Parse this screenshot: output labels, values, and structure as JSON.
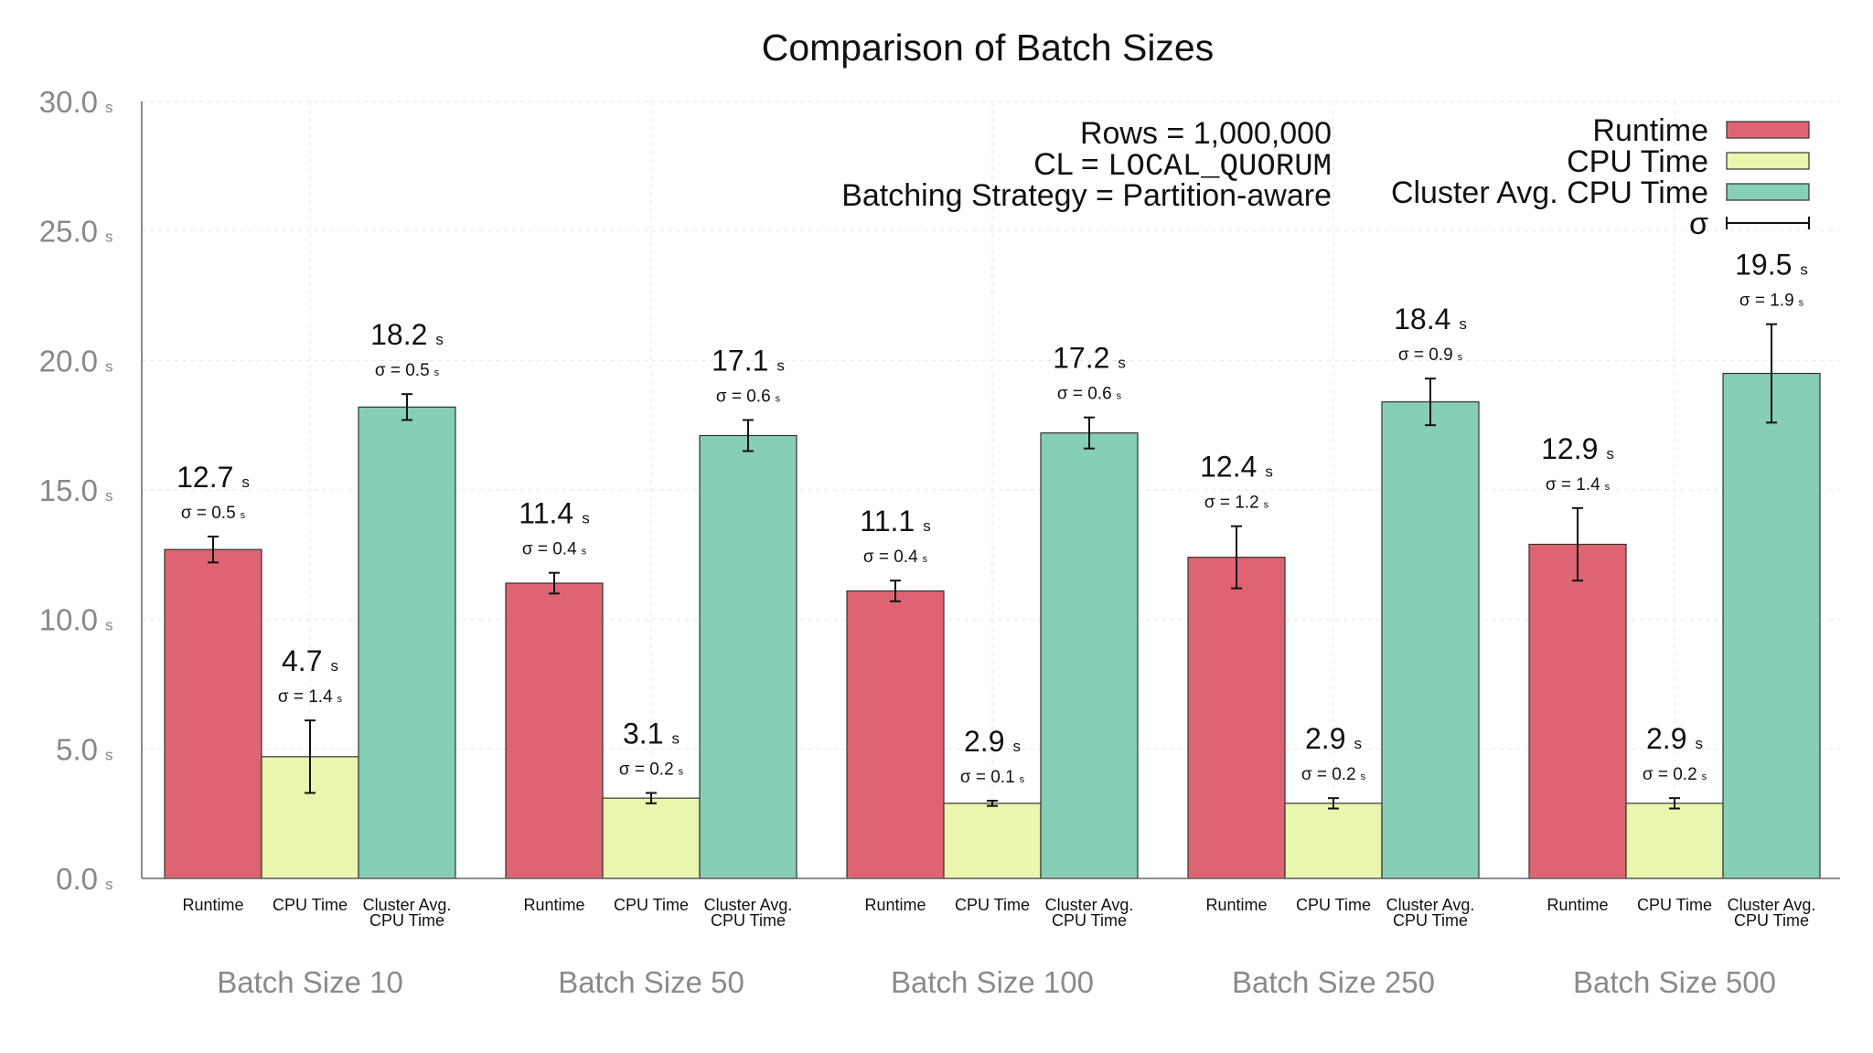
{
  "chart_data": {
    "type": "bar",
    "title": "Comparison of Batch Sizes",
    "ylabel": "",
    "xlabel": "",
    "ylim": [
      0,
      30
    ],
    "yticks": [
      {
        "value": 0,
        "label": "0.0"
      },
      {
        "value": 5,
        "label": "5.0"
      },
      {
        "value": 10,
        "label": "10.0"
      },
      {
        "value": 15,
        "label": "15.0"
      },
      {
        "value": 20,
        "label": "20.0"
      },
      {
        "value": 25,
        "label": "25.0"
      },
      {
        "value": 30,
        "label": "30.0"
      }
    ],
    "unit": "s",
    "grid": true,
    "categories": [
      "Batch Size 10",
      "Batch Size 50",
      "Batch Size 100",
      "Batch Size 250",
      "Batch Size 500"
    ],
    "series": [
      {
        "name": "Runtime",
        "bar_label": "Runtime",
        "color": "#de6471",
        "values": [
          12.7,
          11.4,
          11.1,
          12.4,
          12.9
        ],
        "sigma": [
          0.5,
          0.4,
          0.4,
          1.2,
          1.4
        ],
        "labels": [
          "12.7",
          "11.4",
          "11.1",
          "12.4",
          "12.9"
        ],
        "sigma_labels": [
          "σ = 0.5",
          "σ = 0.4",
          "σ = 0.4",
          "σ = 1.2",
          "σ = 1.4"
        ]
      },
      {
        "name": "CPU Time",
        "bar_label": "CPU Time",
        "color": "#eaf5ad",
        "values": [
          4.7,
          3.1,
          2.9,
          2.9,
          2.9
        ],
        "sigma": [
          1.4,
          0.2,
          0.1,
          0.2,
          0.2
        ],
        "labels": [
          "4.7",
          "3.1",
          "2.9",
          "2.9",
          "2.9"
        ],
        "sigma_labels": [
          "σ = 1.4",
          "σ = 0.2",
          "σ = 0.1",
          "σ = 0.2",
          "σ = 0.2"
        ]
      },
      {
        "name": "Cluster Avg. CPU Time",
        "bar_label": "Cluster Avg.\nCPU Time",
        "color": "#86ceb5",
        "values": [
          18.2,
          17.1,
          17.2,
          18.4,
          19.5
        ],
        "sigma": [
          0.5,
          0.6,
          0.6,
          0.9,
          1.9
        ],
        "labels": [
          "18.2",
          "17.1",
          "17.2",
          "18.4",
          "19.5"
        ],
        "sigma_labels": [
          "σ = 0.5",
          "σ = 0.6",
          "σ = 0.6",
          "σ = 0.9",
          "σ = 1.9"
        ]
      }
    ],
    "annotations": [
      {
        "text": "Rows = 1,000,000",
        "mono": false
      },
      {
        "prefix": "CL = ",
        "text": "LOCAL_QUORUM",
        "mono": true
      },
      {
        "text": "Batching Strategy = Partition-aware",
        "mono": false
      }
    ],
    "legend": {
      "position": "top-right",
      "error_label": "σ"
    }
  }
}
